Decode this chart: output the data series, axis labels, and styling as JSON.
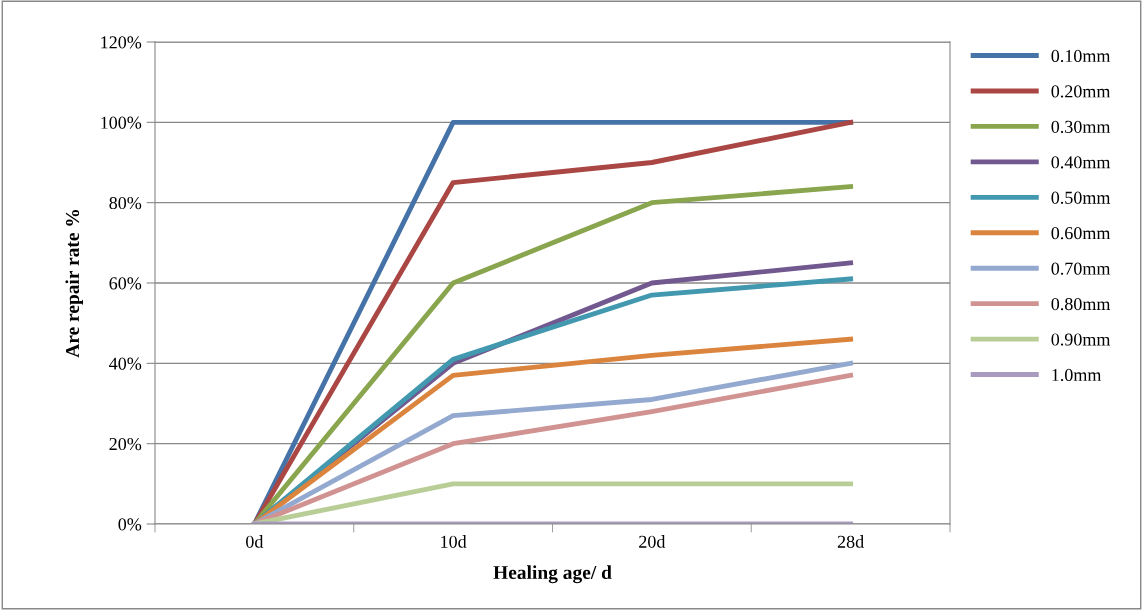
{
  "chart_data": {
    "type": "line",
    "xlabel": "Healing age/ d",
    "ylabel": "Are repair rate %",
    "categories": [
      "0d",
      "10d",
      "20d",
      "28d"
    ],
    "ylim": [
      0,
      120
    ],
    "yticks": [
      {
        "value": 0,
        "label": "0%"
      },
      {
        "value": 20,
        "label": "20%"
      },
      {
        "value": 40,
        "label": "40%"
      },
      {
        "value": 60,
        "label": "60%"
      },
      {
        "value": 80,
        "label": "80%"
      },
      {
        "value": 100,
        "label": "100%"
      },
      {
        "value": 120,
        "label": "120%"
      }
    ],
    "grid": "y",
    "legend": "right",
    "marker": "none",
    "line_style": "solid",
    "series": [
      {
        "name": "0.10mm",
        "color": "#4572a7",
        "values": [
          0,
          100,
          100,
          100
        ]
      },
      {
        "name": "0.20mm",
        "color": "#aa4643",
        "values": [
          0,
          85,
          90,
          100
        ]
      },
      {
        "name": "0.30mm",
        "color": "#89a54e",
        "values": [
          0,
          60,
          80,
          84
        ]
      },
      {
        "name": "0.40mm",
        "color": "#71588f",
        "values": [
          0,
          40,
          60,
          65
        ]
      },
      {
        "name": "0.50mm",
        "color": "#4198af",
        "values": [
          0,
          41,
          57,
          61
        ]
      },
      {
        "name": "0.60mm",
        "color": "#db843d",
        "values": [
          0,
          37,
          42,
          46
        ]
      },
      {
        "name": "0.70mm",
        "color": "#93a9cf",
        "values": [
          0,
          27,
          31,
          40
        ]
      },
      {
        "name": "0.80mm",
        "color": "#d19392",
        "values": [
          0,
          20,
          28,
          37
        ]
      },
      {
        "name": "0.90mm",
        "color": "#b9cd96",
        "values": [
          0,
          10,
          10,
          10
        ]
      },
      {
        "name": "1.0mm",
        "color": "#a99bbd",
        "values": [
          0,
          0,
          0,
          0
        ]
      }
    ]
  }
}
